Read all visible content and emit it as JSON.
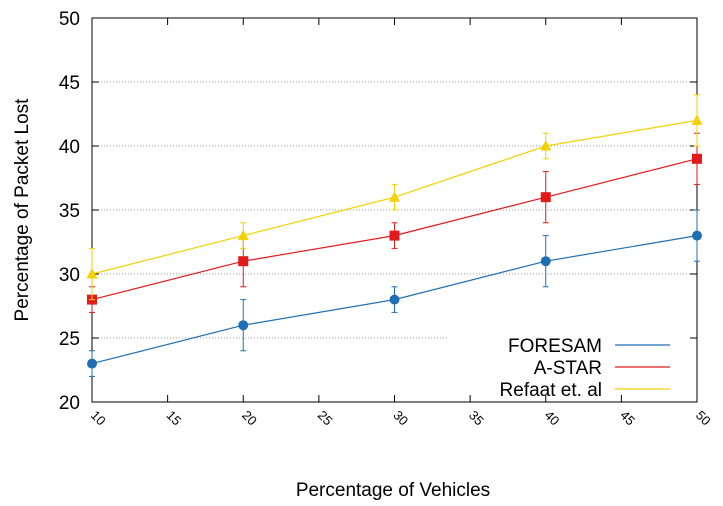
{
  "chart_data": {
    "type": "line",
    "title": "",
    "xlabel": "Percentage of Vehicles",
    "ylabel": "Percentage of Packet Lost",
    "x": [
      10,
      20,
      30,
      40,
      50
    ],
    "xlim": [
      10,
      50
    ],
    "ylim": [
      20,
      50
    ],
    "xticks": [
      10,
      15,
      20,
      25,
      30,
      35,
      40,
      45,
      50
    ],
    "yticks": [
      20,
      25,
      30,
      35,
      40,
      45,
      50
    ],
    "grid": "horizontal dotted",
    "legend_position": "bottom-right",
    "series": [
      {
        "name": "FORESAM",
        "color": "#1f6fb5",
        "marker": "circle",
        "values": [
          23,
          26,
          28,
          31,
          33
        ],
        "error": [
          1,
          2,
          1,
          2,
          2
        ]
      },
      {
        "name": "A-STAR",
        "color": "#e31a1c",
        "marker": "square",
        "values": [
          28,
          31,
          33,
          36,
          39
        ],
        "error": [
          1,
          2,
          1,
          2,
          2
        ]
      },
      {
        "name": "Refaat et. al",
        "color": "#f2d200",
        "marker": "triangle",
        "values": [
          30,
          33,
          36,
          40,
          42
        ],
        "error": [
          2,
          1,
          1,
          1,
          2
        ]
      }
    ]
  }
}
